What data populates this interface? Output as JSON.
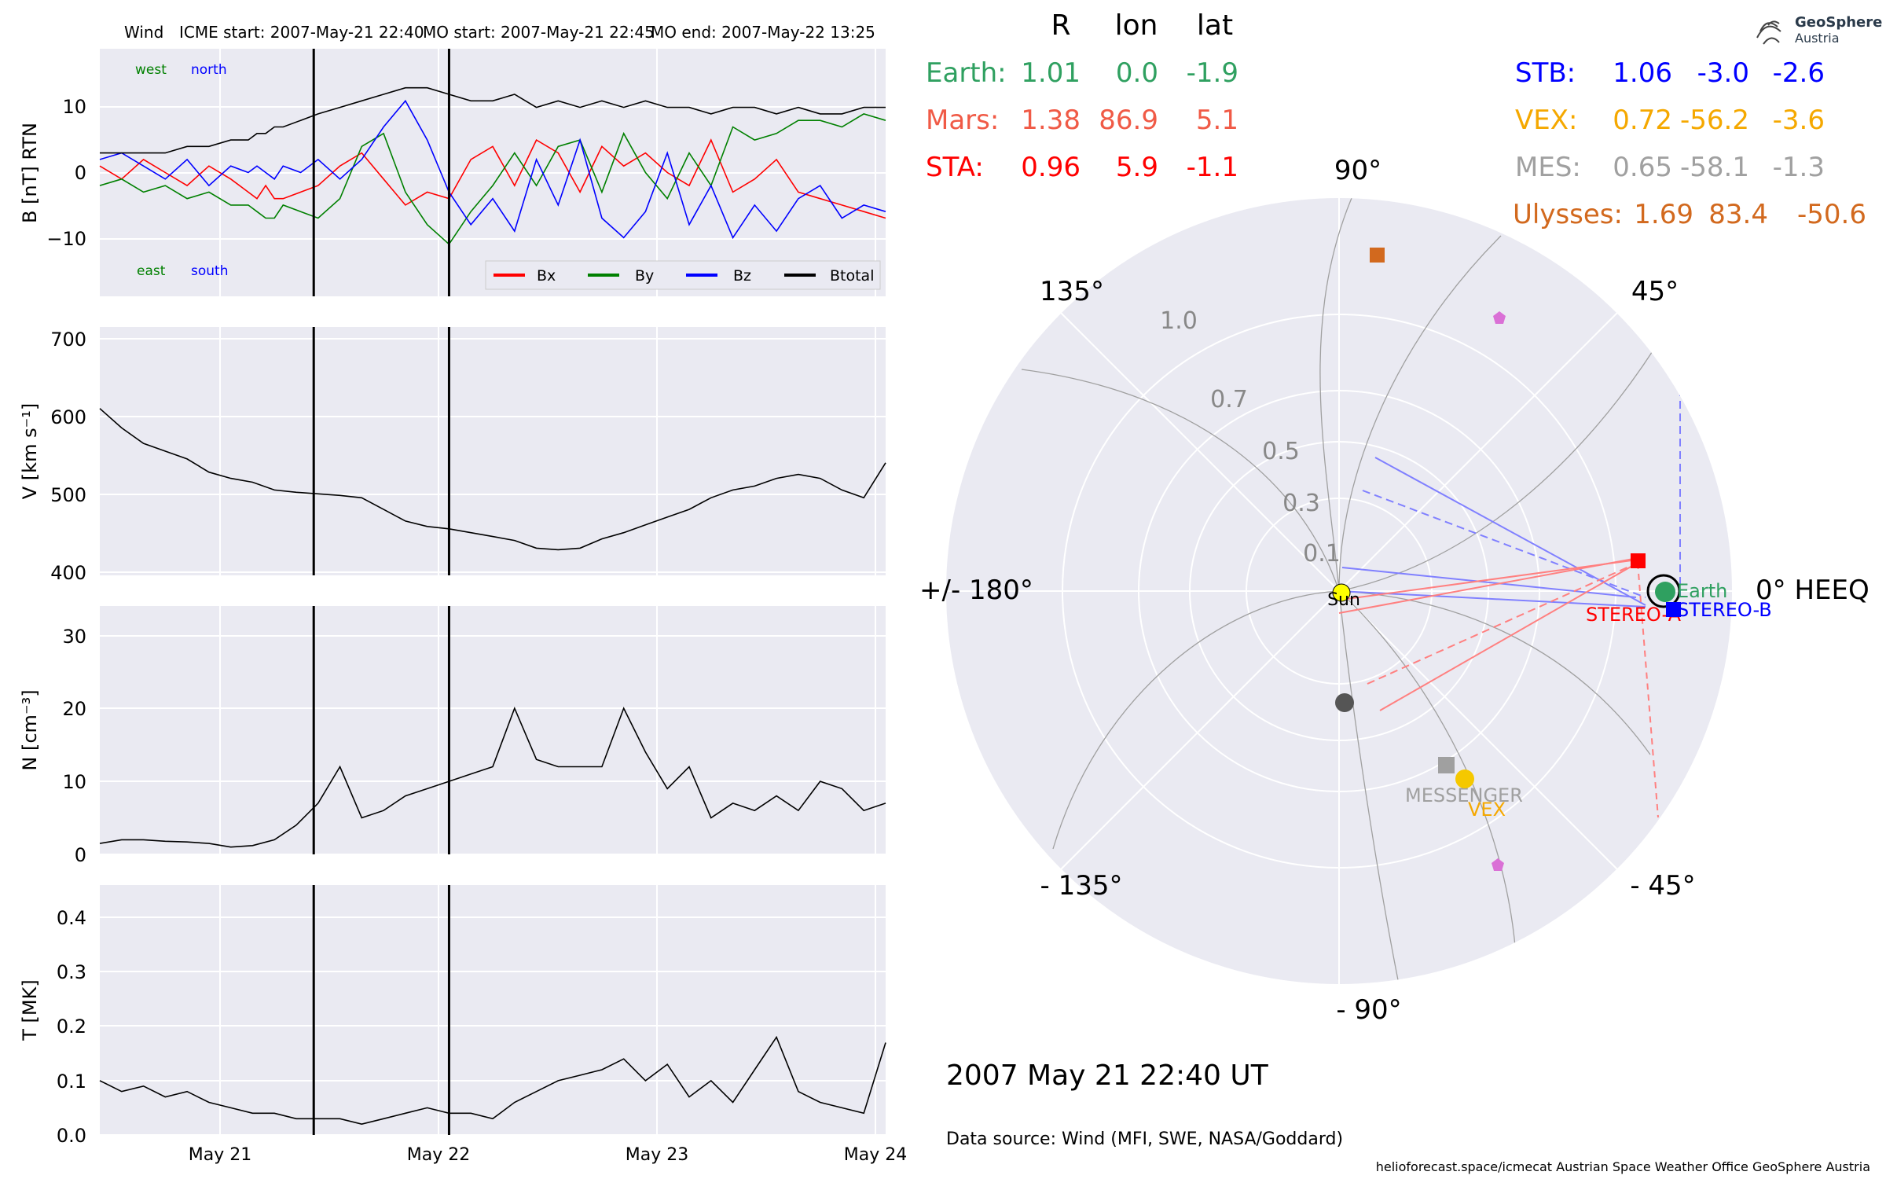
{
  "header": {
    "spacecraft": "Wind",
    "icme_start": "ICME start: 2007-May-21 22:40",
    "mo_start": "MO start: 2007-May-21 22:45",
    "mo_end": "MO end: 2007-May-22 13:25"
  },
  "logo": {
    "name": "GeoSphere",
    "sub": "Austria"
  },
  "timestamp": "2007 May 21  22:40 UT",
  "data_source": "Data source: Wind (MFI, SWE, NASA/Goddard)",
  "footer": "helioforecast.space/icmecat   Austrian Space Weather Office   GeoSphere Austria",
  "position_table": {
    "headers": [
      "R",
      "lon",
      "lat"
    ],
    "left": [
      {
        "name": "Earth:",
        "r": "1.01",
        "lon": "0.0",
        "lat": "-1.9",
        "color": "#2fa060"
      },
      {
        "name": "Mars:",
        "r": "1.38",
        "lon": "86.9",
        "lat": "5.1",
        "color": "#f05a46"
      },
      {
        "name": "STA:",
        "r": "0.96",
        "lon": "5.9",
        "lat": "-1.1",
        "color": "#ff0000"
      }
    ],
    "right": [
      {
        "name": "STB:",
        "r": "1.06",
        "lon": "-3.0",
        "lat": "-2.6",
        "color": "#0000ff"
      },
      {
        "name": "VEX:",
        "r": "0.72",
        "lon": "-56.2",
        "lat": "-3.6",
        "color": "#f5a800"
      },
      {
        "name": "MES:",
        "r": "0.65",
        "lon": "-58.1",
        "lat": "-1.3",
        "color": "#a0a0a0"
      },
      {
        "name": "Ulysses:",
        "r": "1.69",
        "lon": "83.4",
        "lat": "-50.6",
        "color": "#d2691e"
      }
    ]
  },
  "chart_data": [
    {
      "type": "line",
      "panel": "magnetic-field",
      "ylabel": "B [nT] RTN",
      "ylim": [
        -19,
        19
      ],
      "yticks": [
        "10",
        "0",
        "−10"
      ],
      "annotations": {
        "west": "west",
        "north": "north",
        "east": "east",
        "south": "south"
      },
      "legend": [
        "Bx",
        "By",
        "Bz",
        "Btotal"
      ],
      "legend_position": "lower-right",
      "series": [
        {
          "name": "Bx",
          "color": "#ff0000",
          "x": [
            0,
            0.5,
            1,
            1.5,
            2,
            2.5,
            3,
            3.4,
            3.6,
            3.8,
            4.0,
            4.2,
            4.6,
            5,
            5.5,
            6,
            6.5,
            7,
            7.5,
            8,
            8.5,
            9,
            9.5,
            10,
            10.5,
            11,
            11.5,
            12,
            12.5,
            13,
            13.5,
            14,
            14.5,
            15,
            15.5,
            16,
            16.5,
            17,
            17.5,
            18
          ],
          "y": [
            1,
            -1,
            2,
            0,
            -2,
            1,
            -1,
            -3,
            -4,
            -2,
            -4,
            -4,
            -3,
            -2,
            1,
            3,
            -1,
            -5,
            -3,
            -4,
            2,
            4,
            -2,
            5,
            3,
            -3,
            4,
            1,
            3,
            0,
            -2,
            5,
            -3,
            -1,
            2,
            -3,
            -4,
            -5,
            -6,
            -7
          ]
        },
        {
          "name": "By",
          "color": "#008000",
          "x": [
            0,
            0.5,
            1,
            1.5,
            2,
            2.5,
            3,
            3.4,
            3.6,
            3.8,
            4.0,
            4.2,
            4.6,
            5,
            5.5,
            6,
            6.5,
            7,
            7.5,
            8,
            8.5,
            9,
            9.5,
            10,
            10.5,
            11,
            11.5,
            12,
            12.5,
            13,
            13.5,
            14,
            14.5,
            15,
            15.5,
            16,
            16.5,
            17,
            17.5,
            18
          ],
          "y": [
            -2,
            -1,
            -3,
            -2,
            -4,
            -3,
            -5,
            -5,
            -6,
            -7,
            -7,
            -5,
            -6,
            -7,
            -4,
            4,
            6,
            -3,
            -8,
            -11,
            -6,
            -2,
            3,
            -2,
            4,
            5,
            -3,
            6,
            0,
            -4,
            3,
            -2,
            7,
            5,
            6,
            8,
            8,
            7,
            9,
            8
          ]
        },
        {
          "name": "Bz",
          "color": "#0000ff",
          "x": [
            0,
            0.5,
            1,
            1.5,
            2,
            2.5,
            3,
            3.4,
            3.6,
            3.8,
            4.0,
            4.2,
            4.6,
            5,
            5.5,
            6,
            6.5,
            7,
            7.5,
            8,
            8.5,
            9,
            9.5,
            10,
            10.5,
            11,
            11.5,
            12,
            12.5,
            13,
            13.5,
            14,
            14.5,
            15,
            15.5,
            16,
            16.5,
            17,
            17.5,
            18
          ],
          "y": [
            2,
            3,
            1,
            -1,
            2,
            -2,
            1,
            0,
            1,
            0,
            -1,
            1,
            0,
            2,
            -1,
            2,
            7,
            11,
            5,
            -3,
            -8,
            -4,
            -9,
            2,
            -5,
            5,
            -7,
            -10,
            -6,
            3,
            -8,
            -2,
            -10,
            -5,
            -9,
            -4,
            -2,
            -7,
            -5,
            -6
          ]
        },
        {
          "name": "Btotal",
          "color": "#000000",
          "x": [
            0,
            0.5,
            1,
            1.5,
            2,
            2.5,
            3,
            3.4,
            3.6,
            3.8,
            4.0,
            4.2,
            4.6,
            5,
            5.5,
            6,
            6.5,
            7,
            7.5,
            8,
            8.5,
            9,
            9.5,
            10,
            10.5,
            11,
            11.5,
            12,
            12.5,
            13,
            13.5,
            14,
            14.5,
            15,
            15.5,
            16,
            16.5,
            17,
            17.5,
            18
          ],
          "y": [
            3,
            3,
            3,
            3,
            4,
            4,
            5,
            5,
            6,
            6,
            7,
            7,
            8,
            9,
            10,
            11,
            12,
            13,
            13,
            12,
            11,
            11,
            12,
            10,
            11,
            10,
            11,
            10,
            11,
            10,
            10,
            9,
            10,
            10,
            9,
            10,
            9,
            9,
            10,
            10
          ]
        }
      ]
    },
    {
      "type": "line",
      "panel": "speed",
      "ylabel": "V [km s⁻¹]",
      "ylim": [
        395,
        715
      ],
      "yticks": [
        "700",
        "600",
        "500",
        "400"
      ],
      "series": [
        {
          "name": "V",
          "color": "#000000",
          "x": [
            0,
            0.5,
            1,
            1.5,
            2,
            2.5,
            3,
            3.5,
            4,
            4.5,
            5,
            5.5,
            6,
            6.5,
            7,
            7.5,
            8,
            8.5,
            9,
            9.5,
            10,
            10.5,
            11,
            11.5,
            12,
            12.5,
            13,
            13.5,
            14,
            14.5,
            15,
            15.5,
            16,
            16.5,
            17,
            17.5,
            18
          ],
          "y": [
            610,
            585,
            565,
            555,
            545,
            528,
            520,
            515,
            505,
            502,
            500,
            498,
            495,
            480,
            465,
            458,
            455,
            450,
            445,
            440,
            430,
            428,
            430,
            442,
            450,
            460,
            470,
            480,
            495,
            505,
            510,
            520,
            525,
            520,
            505,
            495,
            540
          ]
        }
      ]
    },
    {
      "type": "line",
      "panel": "density",
      "ylabel": "N [cm⁻³]",
      "ylim": [
        0,
        34
      ],
      "yticks": [
        "30",
        "20",
        "10",
        "0"
      ],
      "series": [
        {
          "name": "N",
          "color": "#000000",
          "x": [
            0,
            0.5,
            1,
            1.5,
            2,
            2.5,
            3,
            3.5,
            4,
            4.5,
            5,
            5.5,
            6,
            6.5,
            7,
            7.5,
            8,
            8.5,
            9,
            9.5,
            10,
            10.5,
            11,
            11.5,
            12,
            12.5,
            13,
            13.5,
            14,
            14.5,
            15,
            15.5,
            16,
            16.5,
            17,
            17.5,
            18
          ],
          "y": [
            1.5,
            2,
            2,
            1.8,
            1.7,
            1.5,
            1,
            1.2,
            2,
            4,
            7,
            12,
            5,
            6,
            8,
            9,
            10,
            11,
            12,
            20,
            13,
            12,
            12,
            12,
            20,
            14,
            9,
            12,
            5,
            7,
            6,
            8,
            6,
            10,
            9,
            6,
            7
          ]
        }
      ]
    },
    {
      "type": "line",
      "panel": "temperature",
      "ylabel": "T [MK]",
      "ylim": [
        0,
        0.46
      ],
      "yticks": [
        "0.4",
        "0.3",
        "0.2",
        "0.1",
        "0.0"
      ],
      "xticks": [
        "May 21",
        "May 22",
        "May 23",
        "May 24"
      ],
      "series": [
        {
          "name": "T",
          "color": "#000000",
          "x": [
            0,
            0.5,
            1,
            1.5,
            2,
            2.5,
            3,
            3.5,
            4,
            4.5,
            5,
            5.5,
            6,
            6.5,
            7,
            7.5,
            8,
            8.5,
            9,
            9.5,
            10,
            10.5,
            11,
            11.5,
            12,
            12.5,
            13,
            13.5,
            14,
            14.5,
            15,
            15.5,
            16,
            16.5,
            17,
            17.5,
            18
          ],
          "y": [
            0.1,
            0.08,
            0.09,
            0.07,
            0.08,
            0.06,
            0.05,
            0.04,
            0.04,
            0.03,
            0.03,
            0.03,
            0.02,
            0.03,
            0.04,
            0.05,
            0.04,
            0.04,
            0.03,
            0.06,
            0.08,
            0.1,
            0.11,
            0.12,
            0.14,
            0.1,
            0.13,
            0.07,
            0.1,
            0.06,
            0.12,
            0.18,
            0.08,
            0.06,
            0.05,
            0.04,
            0.17
          ]
        }
      ]
    }
  ],
  "event_lines": {
    "x": [
      4.9,
      8.0
    ]
  },
  "polar_plot": {
    "angle_labels": [
      "90°",
      "45°",
      "0° HEEQ",
      "- 45°",
      "- 90°",
      "- 135°",
      "+/- 180°",
      "135°"
    ],
    "radial_labels": [
      "0.1",
      "0.3",
      "0.5",
      "0.7",
      "1.0"
    ],
    "bodies": [
      {
        "name": "Sun",
        "color": "#ffff00"
      },
      {
        "name": "Earth",
        "color": "#2fa060"
      },
      {
        "name": "STEREO-A",
        "color": "#ff0000"
      },
      {
        "name": "STEREO-B",
        "color": "#0000ff"
      },
      {
        "name": "MESSENGER",
        "color": "#a0a0a0"
      },
      {
        "name": "VEX",
        "color": "#f5a800"
      }
    ]
  }
}
